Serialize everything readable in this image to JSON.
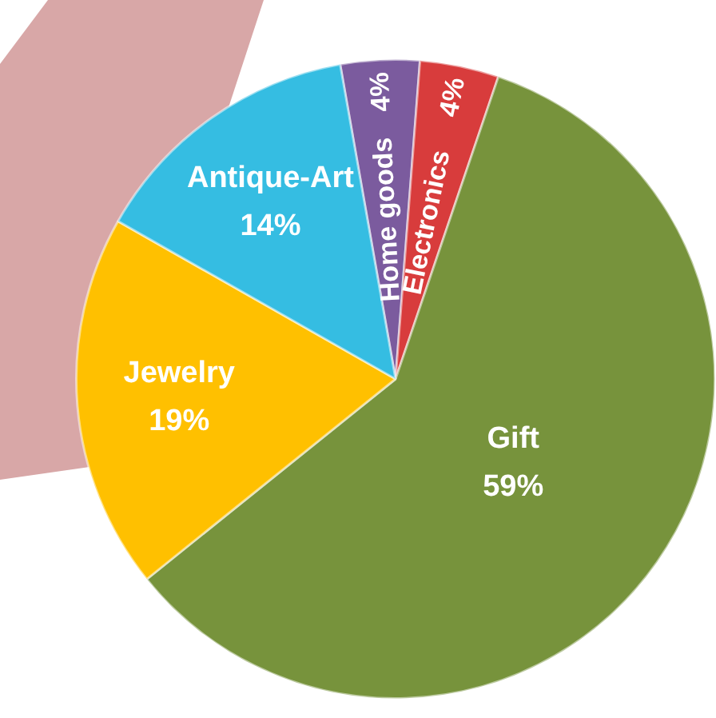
{
  "chart_data": {
    "type": "pie",
    "categories": [
      "Home goods",
      "Electronics",
      "Gift",
      "Jewelry",
      "Antique-Art"
    ],
    "values": [
      4,
      4,
      59,
      19,
      14
    ],
    "value_labels": [
      "4%",
      "4%",
      "59%",
      "19%",
      "14%"
    ],
    "colors": [
      "#7b5b9e",
      "#d83c3c",
      "#77933c",
      "#ffc000",
      "#35bde2"
    ],
    "legend": false
  }
}
